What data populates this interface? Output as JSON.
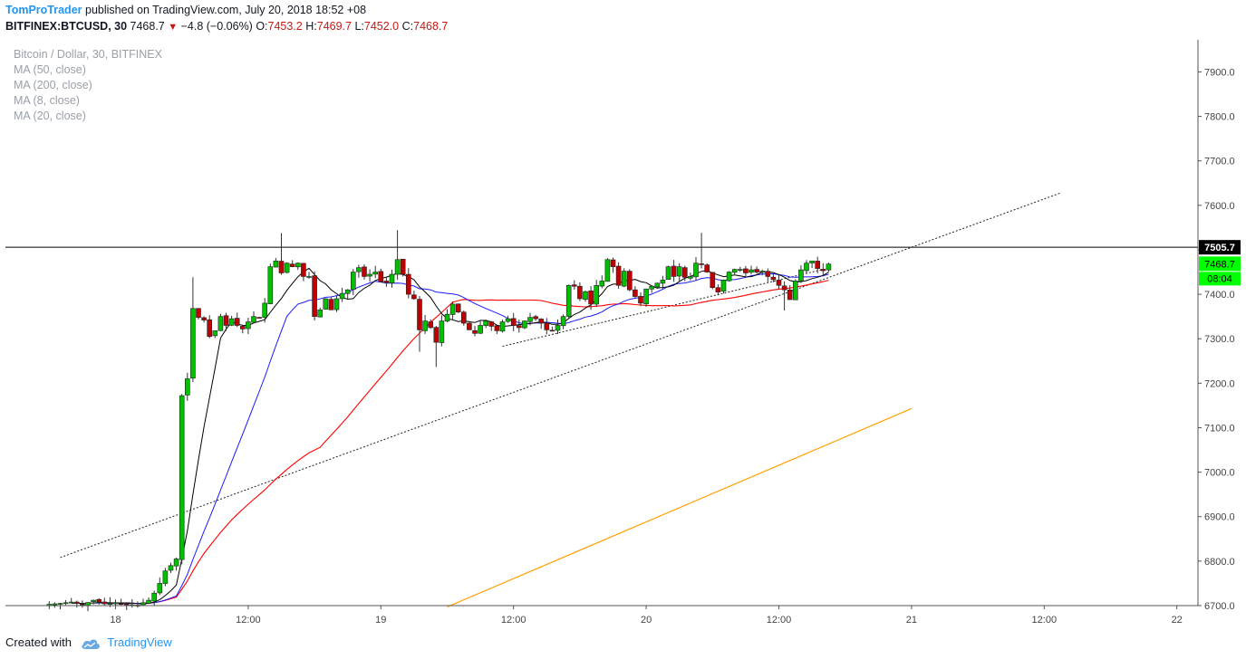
{
  "header": {
    "author": "TomProTrader",
    "published_text": "published on TradingView.com, July 20, 2018 18:52 +08",
    "symbol": "BITFINEX:BTCUSD, 30",
    "last": "7468.7",
    "change": "−4.8 (−0.06%)",
    "o_label": "O:",
    "o_value": "7453.2",
    "h_label": "H:",
    "h_value": "7469.7",
    "l_label": "L:",
    "l_value": "7452.0",
    "c_label": "C:",
    "c_value": "7468.7"
  },
  "legend": {
    "title": "Bitcoin / Dollar, 30, BITFINEX",
    "ma50": "MA (50, close)",
    "ma200": "MA (200, close)",
    "ma8": "MA (8, close)",
    "ma20": "MA (20, close)"
  },
  "price_labels": {
    "resistance": "7505.7",
    "last": "7468.7",
    "countdown": "08:04"
  },
  "footer": {
    "created_with": "Created with",
    "brand": "TradingView"
  },
  "colors": {
    "up": "#00c000",
    "down": "#c00000",
    "ma8": "#000000",
    "ma20": "#1a1aff",
    "ma50": "#ff0000",
    "ma200": "#ffa000",
    "accent": "#2196f3",
    "last_label_bg": "#00ff00"
  },
  "chart_data": {
    "type": "candlestick",
    "title": "Bitcoin / Dollar, 30, BITFINEX",
    "y_ticks": [
      6700,
      6800,
      6900,
      7000,
      7100,
      7200,
      7300,
      7400,
      7500,
      7600,
      7700,
      7800,
      7900
    ],
    "ylim": [
      6690,
      7960
    ],
    "x_ticks": [
      "18",
      "12:00",
      "19",
      "12:00",
      "20",
      "12:00",
      "21",
      "12:00",
      "22"
    ],
    "x_tick_bars": [
      24,
      48,
      72,
      96,
      120,
      144,
      168,
      192,
      216
    ],
    "xlim": [
      14,
      222
    ],
    "resistance_level": 7505.7,
    "last_price": 7468.7,
    "candles": [
      [
        7453.2,
        7469.7,
        7452.0,
        7468.7
      ]
    ],
    "trendlines": [
      {
        "from": [
          14,
          6808
        ],
        "to": [
          195,
          7628
        ],
        "style": "dotted"
      },
      {
        "from": [
          94,
          7283
        ],
        "to": [
          152,
          7456
        ],
        "style": "dotted"
      }
    ],
    "ma200": [
      [
        84,
        6697
      ],
      [
        168,
        7143
      ]
    ]
  }
}
